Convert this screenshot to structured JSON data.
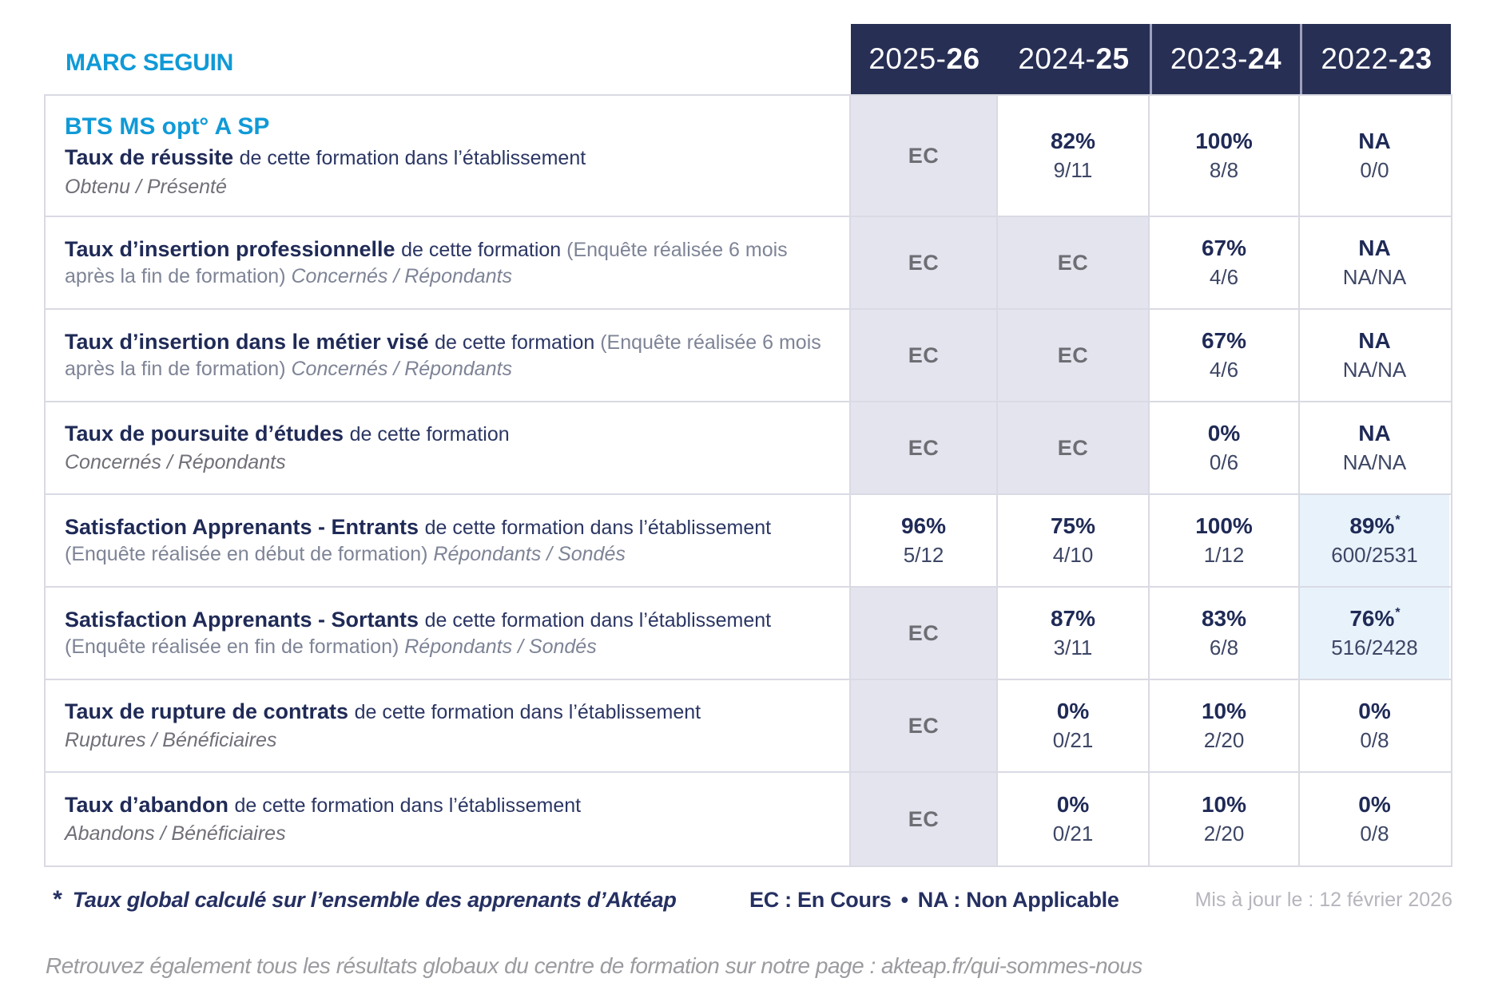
{
  "org_name": "MARC SEGUIN",
  "header": {
    "years": [
      {
        "prefix": "2025-",
        "suffix": "26"
      },
      {
        "prefix": "2024-",
        "suffix": "25"
      },
      {
        "prefix": "2023-",
        "suffix": "24"
      },
      {
        "prefix": "2022-",
        "suffix": "23"
      }
    ]
  },
  "table": {
    "rows": [
      {
        "program": "BTS MS opt° A SP",
        "parts": [
          {
            "text": "Taux de réussite ",
            "style": "bold"
          },
          {
            "text": "de cette formation dans l’établissement",
            "style": "regular"
          }
        ],
        "subtitle": "Obtenu / Présenté",
        "cells": [
          {
            "main": "EC",
            "ec": true
          },
          {
            "main": "82%",
            "sub": "9/11"
          },
          {
            "main": "100%",
            "sub": "8/8"
          },
          {
            "main": "NA",
            "sub": "0/0"
          }
        ]
      },
      {
        "parts": [
          {
            "text": "Taux d’insertion professionnelle ",
            "style": "bold"
          },
          {
            "text": "de cette formation ",
            "style": "regular"
          },
          {
            "text": "(Enquête réalisée 6 mois après la fin de formation) ",
            "style": "muted"
          },
          {
            "text": "Concernés / Répondants",
            "style": "muted-italic"
          }
        ],
        "cells": [
          {
            "main": "EC",
            "ec": true
          },
          {
            "main": "EC",
            "ec": true
          },
          {
            "main": "67%",
            "sub": "4/6"
          },
          {
            "main": "NA",
            "sub": "NA/NA"
          }
        ]
      },
      {
        "parts": [
          {
            "text": "Taux d’insertion dans le métier visé ",
            "style": "bold"
          },
          {
            "text": "de cette formation ",
            "style": "regular"
          },
          {
            "text": "(Enquête réalisée 6 mois après la fin de formation) ",
            "style": "muted"
          },
          {
            "text": "Concernés / Répondants",
            "style": "muted-italic"
          }
        ],
        "cells": [
          {
            "main": "EC",
            "ec": true
          },
          {
            "main": "EC",
            "ec": true
          },
          {
            "main": "67%",
            "sub": "4/6"
          },
          {
            "main": "NA",
            "sub": "NA/NA"
          }
        ]
      },
      {
        "parts": [
          {
            "text": "Taux de poursuite d’études ",
            "style": "bold"
          },
          {
            "text": "de cette formation",
            "style": "regular"
          }
        ],
        "subtitle": "Concernés / Répondants",
        "cells": [
          {
            "main": "EC",
            "ec": true
          },
          {
            "main": "EC",
            "ec": true
          },
          {
            "main": "0%",
            "sub": "0/6"
          },
          {
            "main": "NA",
            "sub": "NA/NA"
          }
        ]
      },
      {
        "parts": [
          {
            "text": "Satisfaction Apprenants - Entrants ",
            "style": "bold"
          },
          {
            "text": "de cette formation dans l’établissement ",
            "style": "regular"
          },
          {
            "text": "(Enquête réalisée en début de formation) ",
            "style": "muted"
          },
          {
            "text": "Répondants / Sondés",
            "style": "muted-italic"
          }
        ],
        "cells": [
          {
            "main": "96%",
            "sub": "5/12"
          },
          {
            "main": "75%",
            "sub": "4/10"
          },
          {
            "main": "100%",
            "sub": "1/12"
          },
          {
            "main": "89%",
            "star": "*",
            "sub": "600/2531",
            "hl": true
          }
        ]
      },
      {
        "parts": [
          {
            "text": "Satisfaction Apprenants - Sortants ",
            "style": "bold"
          },
          {
            "text": "de cette formation dans l’établissement ",
            "style": "regular"
          },
          {
            "text": "(Enquête réalisée en fin de formation) ",
            "style": "muted"
          },
          {
            "text": "Répondants / Sondés",
            "style": "muted-italic"
          }
        ],
        "cells": [
          {
            "main": "EC",
            "ec": true
          },
          {
            "main": "87%",
            "sub": "3/11"
          },
          {
            "main": "83%",
            "sub": "6/8"
          },
          {
            "main": "76%",
            "star": "*",
            "sub": "516/2428",
            "hl": true
          }
        ]
      },
      {
        "parts": [
          {
            "text": "Taux de rupture de contrats ",
            "style": "bold"
          },
          {
            "text": "de cette formation dans l’établissement",
            "style": "regular"
          }
        ],
        "subtitle": "Ruptures / Bénéficiaires",
        "cells": [
          {
            "main": "EC",
            "ec": true
          },
          {
            "main": "0%",
            "sub": "0/21"
          },
          {
            "main": "10%",
            "sub": "2/20"
          },
          {
            "main": "0%",
            "sub": "0/8"
          }
        ]
      },
      {
        "parts": [
          {
            "text": "Taux d’abandon ",
            "style": "bold"
          },
          {
            "text": "de cette formation dans l’établissement",
            "style": "regular"
          }
        ],
        "subtitle": "Abandons / Bénéficiaires",
        "cells": [
          {
            "main": "EC",
            "ec": true
          },
          {
            "main": "0%",
            "sub": "0/21"
          },
          {
            "main": "10%",
            "sub": "2/20"
          },
          {
            "main": "0%",
            "sub": "0/8"
          }
        ]
      }
    ]
  },
  "footer": {
    "footnote_star": "*",
    "footnote_text": "Taux global calculé sur l’ensemble des apprenants d’Aktéap",
    "legend_ec": "EC : En Cours",
    "legend_sep": "•",
    "legend_na": "NA : Non Applicable",
    "updated": "Mis à jour le : 12 février 2026",
    "bottom_note": "Retrouvez également tous les résultats globaux du centre de formation sur notre page : akteap.fr/qui-sommes-nous"
  },
  "colors": {
    "accent_blue": "#0f9ad7",
    "navy_text": "#1f2a56",
    "header_bg": "#272f55",
    "ec_cell_bg": "#e4e4ee",
    "highlight_cell_bg": "#e8f2fa",
    "border": "#d9dae3"
  }
}
